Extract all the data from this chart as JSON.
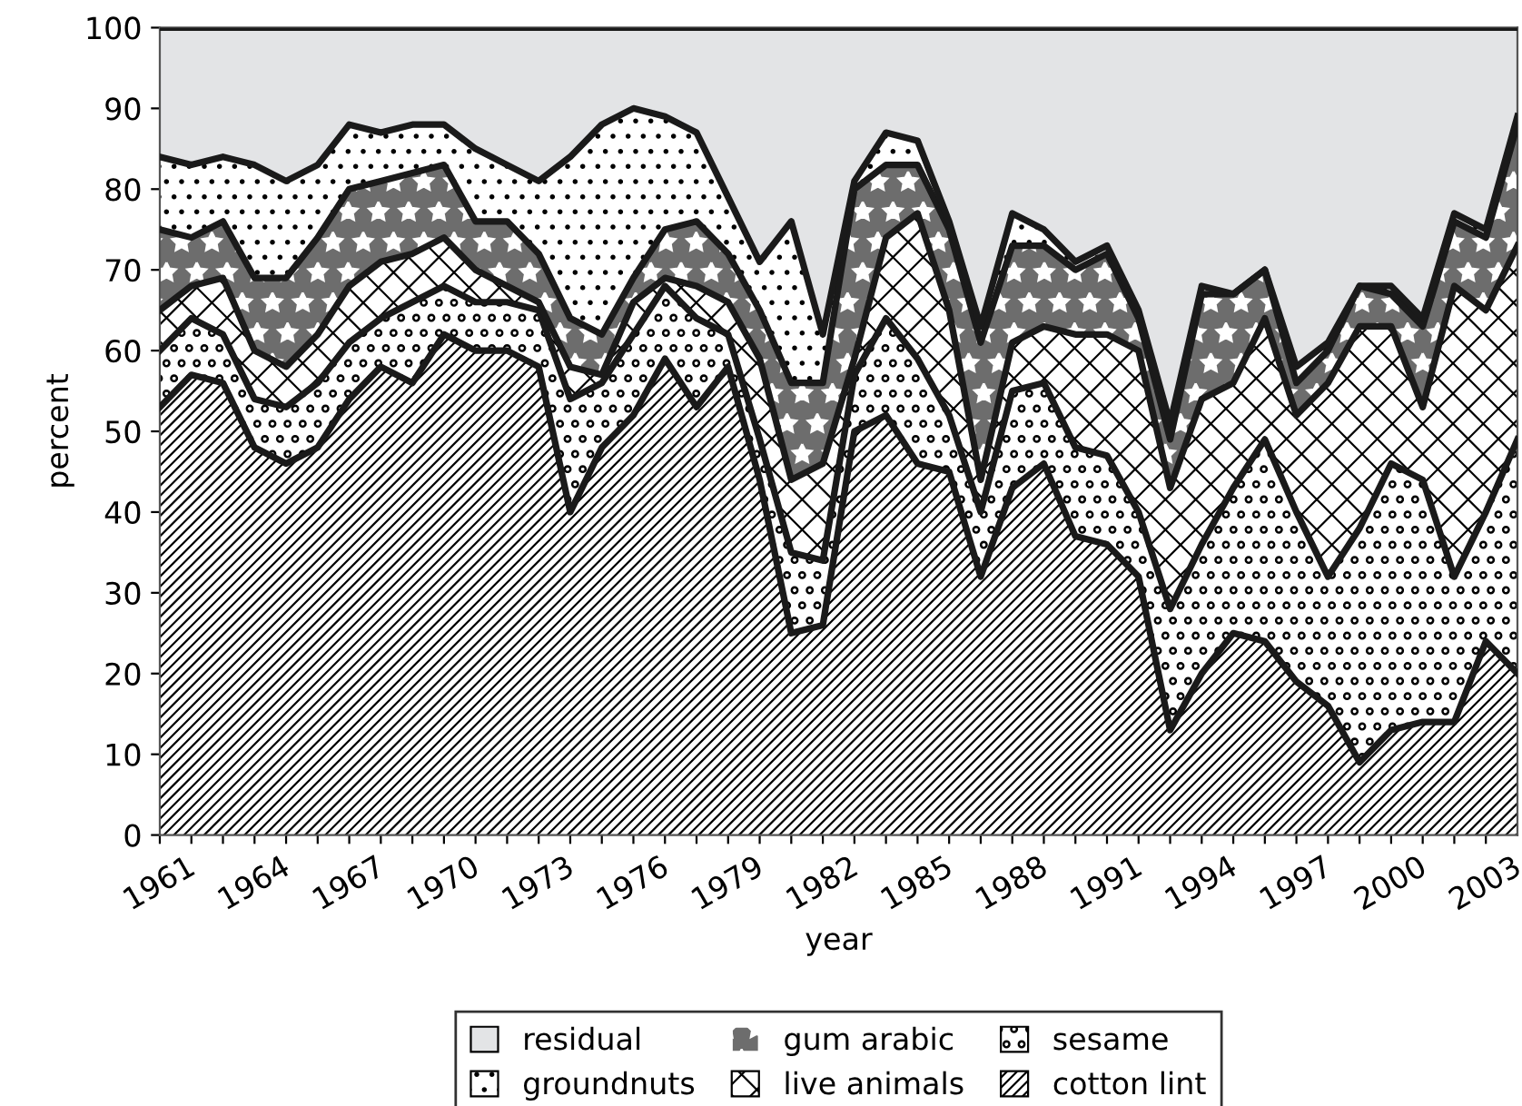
{
  "chart_data": {
    "type": "area",
    "stacked": true,
    "xlabel": "year",
    "ylabel": "percent",
    "x": [
      1961,
      1962,
      1963,
      1964,
      1965,
      1966,
      1967,
      1968,
      1969,
      1970,
      1971,
      1972,
      1973,
      1974,
      1975,
      1976,
      1977,
      1978,
      1979,
      1980,
      1981,
      1982,
      1983,
      1984,
      1985,
      1986,
      1987,
      1988,
      1989,
      1990,
      1991,
      1992,
      1993,
      1994,
      1995,
      1996,
      1997,
      1998,
      1999,
      2000,
      2001,
      2002,
      2003,
      2004
    ],
    "series": [
      {
        "name": "cotton lint",
        "color": "#ffffff",
        "values": [
          53,
          57,
          56,
          48,
          46,
          48,
          54,
          58,
          56,
          62,
          60,
          60,
          58,
          40,
          48,
          52,
          59,
          53,
          58,
          44,
          25,
          26,
          50,
          52,
          46,
          45,
          32,
          43,
          46,
          37,
          36,
          32,
          13,
          20,
          25,
          24,
          19,
          16,
          9,
          13,
          14,
          14,
          24,
          20
        ]
      },
      {
        "name": "sesame",
        "color": "#ffffff",
        "values": [
          7,
          7,
          6,
          6,
          7,
          8,
          7,
          6,
          10,
          6,
          6,
          6,
          7,
          14,
          8,
          10,
          9,
          11,
          4,
          5,
          10,
          8,
          7,
          12,
          13,
          7,
          8,
          12,
          10,
          11,
          11,
          8,
          15,
          16,
          18,
          25,
          21,
          16,
          29,
          33,
          30,
          18,
          16,
          29
        ]
      },
      {
        "name": "live animals",
        "color": "#ffffff",
        "values": [
          5,
          4,
          7,
          6,
          5,
          6,
          7,
          7,
          6,
          6,
          4,
          2,
          1,
          4,
          1,
          4,
          1,
          4,
          4,
          10,
          9,
          12,
          2,
          10,
          18,
          13,
          4,
          6,
          7,
          14,
          15,
          20,
          15,
          18,
          13,
          15,
          12,
          24,
          25,
          17,
          9,
          36,
          25,
          24
        ]
      },
      {
        "name": "gum arabic",
        "color": "#6d6d6d",
        "values": [
          10,
          6,
          7,
          9,
          11,
          12,
          12,
          10,
          10,
          9,
          6,
          8,
          6,
          6,
          5,
          3,
          6,
          8,
          6,
          6,
          12,
          10,
          21,
          9,
          6,
          10,
          17,
          12,
          10,
          8,
          10,
          4,
          6,
          13,
          11,
          6,
          4,
          4,
          5,
          4,
          10,
          8,
          9,
          15
        ]
      },
      {
        "name": "groundnuts",
        "color": "#ffffff",
        "values": [
          9,
          9,
          8,
          14,
          12,
          9,
          8,
          6,
          6,
          5,
          9,
          7,
          9,
          20,
          26,
          21,
          14,
          11,
          7,
          6,
          20,
          6,
          1,
          4,
          3,
          1,
          2,
          4,
          2,
          1,
          1,
          1,
          2,
          1,
          0,
          0,
          2,
          1,
          0,
          1,
          1,
          1,
          1,
          1
        ]
      },
      {
        "name": "residual",
        "color": "#e3e4e6",
        "values": [
          16,
          17,
          16,
          17,
          19,
          17,
          12,
          13,
          12,
          12,
          15,
          17,
          19,
          16,
          12,
          10,
          11,
          13,
          21,
          29,
          24,
          38,
          19,
          13,
          14,
          24,
          37,
          23,
          25,
          29,
          27,
          35,
          49,
          32,
          33,
          30,
          42,
          39,
          32,
          32,
          36,
          23,
          25,
          11
        ]
      }
    ],
    "xlim": [
      1961,
      2004
    ],
    "xticks": [
      1961,
      {
        "value": 1962,
        "label": null
      },
      {
        "value": 1963,
        "label": null
      },
      1964,
      {
        "value": 1965,
        "label": null
      },
      {
        "value": 1966,
        "label": null
      },
      1967,
      {
        "value": 1968,
        "label": null
      },
      {
        "value": 1969,
        "label": null
      },
      1970,
      {
        "value": 1971,
        "label": null
      },
      {
        "value": 1972,
        "label": null
      },
      1973,
      {
        "value": 1974,
        "label": null
      },
      {
        "value": 1975,
        "label": null
      },
      1976,
      {
        "value": 1977,
        "label": null
      },
      {
        "value": 1978,
        "label": null
      },
      1979,
      {
        "value": 1980,
        "label": null
      },
      {
        "value": 1981,
        "label": null
      },
      1982,
      {
        "value": 1983,
        "label": null
      },
      {
        "value": 1984,
        "label": null
      },
      1985,
      {
        "value": 1986,
        "label": null
      },
      {
        "value": 1987,
        "label": null
      },
      1988,
      {
        "value": 1989,
        "label": null
      },
      {
        "value": 1990,
        "label": null
      },
      1991,
      {
        "value": 1992,
        "label": null
      },
      {
        "value": 1993,
        "label": null
      },
      1994,
      {
        "value": 1995,
        "label": null
      },
      {
        "value": 1996,
        "label": null
      },
      1997,
      {
        "value": 1998,
        "label": null
      },
      {
        "value": 1999,
        "label": null
      },
      2000,
      {
        "value": 2001,
        "label": null
      },
      {
        "value": 2002,
        "label": null
      },
      2003
    ],
    "ylim": [
      0,
      100
    ],
    "yticks": [
      0,
      10,
      20,
      30,
      40,
      50,
      60,
      70,
      80,
      90,
      100
    ],
    "legend": "bottom"
  }
}
